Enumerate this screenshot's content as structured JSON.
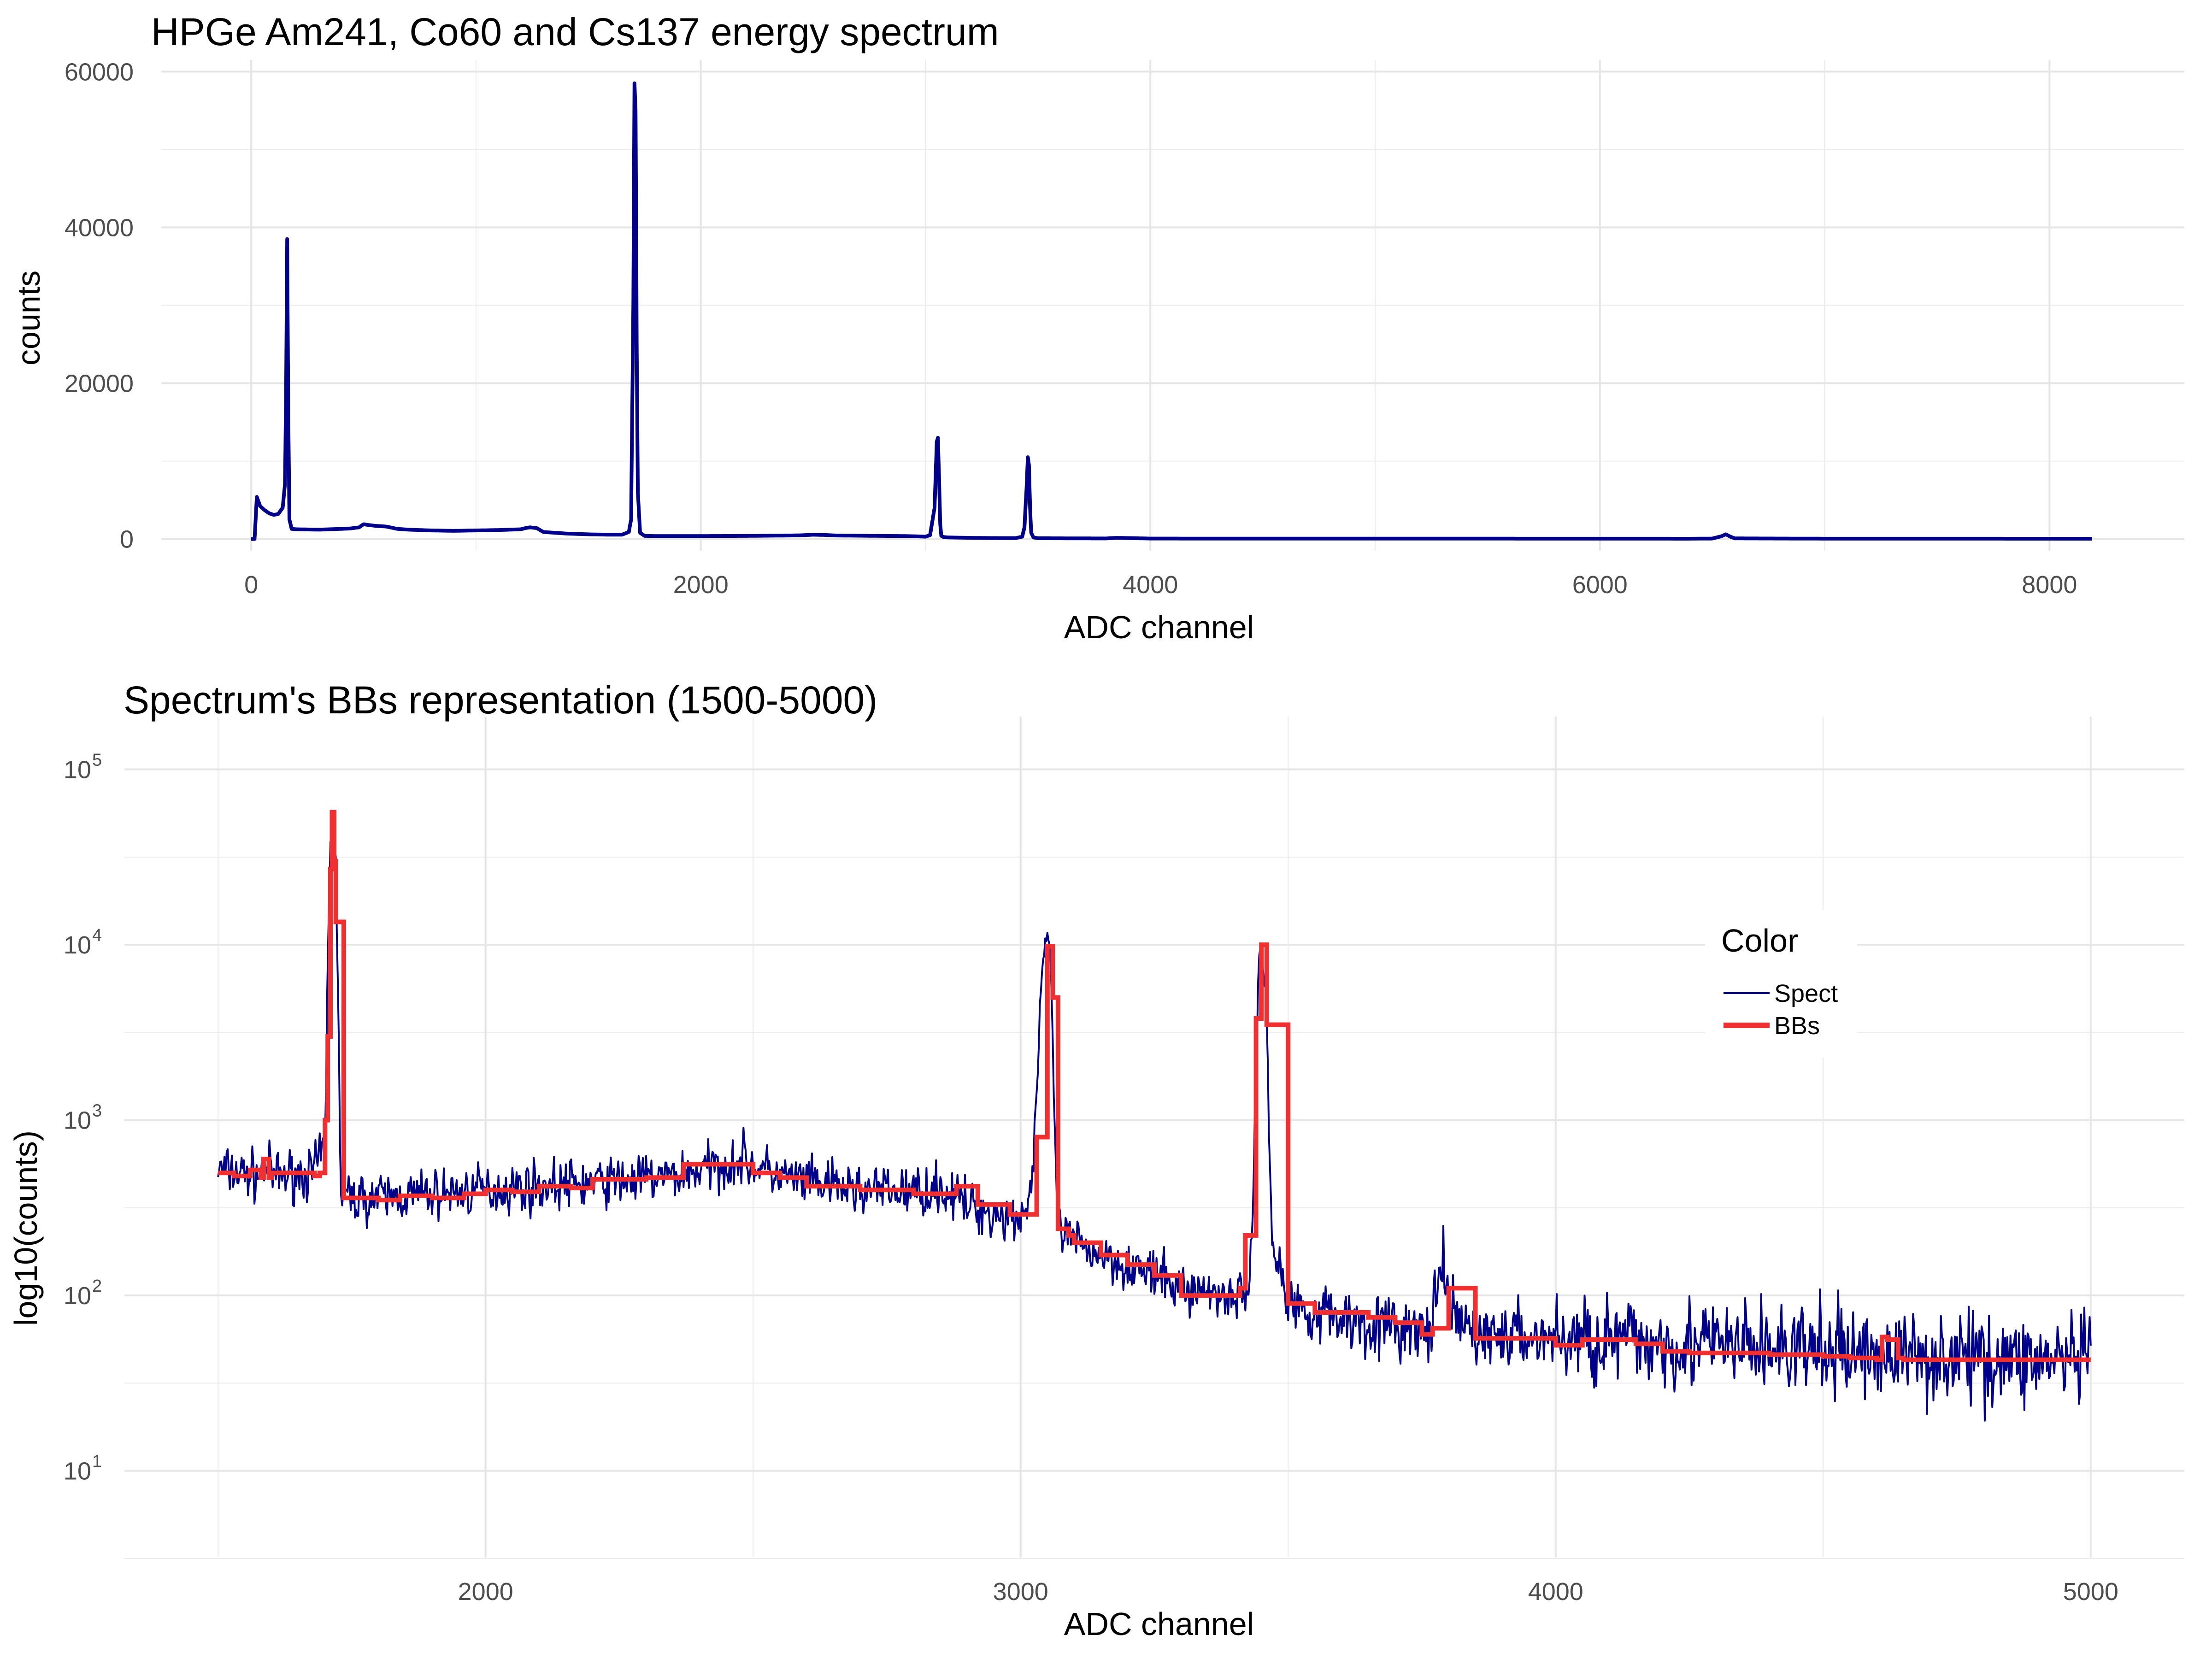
{
  "chart_data": [
    {
      "type": "line",
      "title": "HPGe Am241, Co60 and Cs137 energy spectrum",
      "xlabel": "ADC channel",
      "ylabel": "counts",
      "xlim": [
        -400,
        8600
      ],
      "ylim": [
        -1500,
        61500
      ],
      "x_ticks": [
        0,
        2000,
        4000,
        6000,
        8000
      ],
      "y_ticks": [
        0,
        20000,
        40000,
        60000
      ],
      "grid": true,
      "line_color": "#00008B",
      "series": [
        {
          "x": [
            0,
            15,
            25,
            40,
            60,
            80,
            100,
            120,
            140,
            150,
            155,
            160,
            165,
            170,
            180,
            200,
            300,
            400,
            440,
            480,
            500,
            520,
            550,
            600,
            650,
            700,
            800,
            900,
            1000,
            1100,
            1200,
            1220,
            1240,
            1270,
            1300,
            1350,
            1400,
            1500,
            1600,
            1650,
            1680,
            1690,
            1700,
            1705,
            1710,
            1715,
            1720,
            1730,
            1750,
            1800,
            2000,
            2200,
            2400,
            2450,
            2500,
            2550,
            2600,
            2800,
            2900,
            2950,
            3000,
            3020,
            3040,
            3050,
            3055,
            3060,
            3065,
            3070,
            3080,
            3100,
            3200,
            3300,
            3400,
            3430,
            3440,
            3450,
            3455,
            3460,
            3465,
            3470,
            3480,
            3500,
            3700,
            3800,
            3850,
            4000,
            5000,
            6000,
            6400,
            6500,
            6540,
            6560,
            6580,
            6600,
            7000,
            8000,
            8191
          ],
          "y": [
            0,
            0,
            5400,
            4200,
            3700,
            3300,
            3100,
            3200,
            4000,
            7000,
            18000,
            38500,
            16000,
            2500,
            1300,
            1250,
            1200,
            1300,
            1350,
            1500,
            1900,
            1800,
            1700,
            1600,
            1300,
            1200,
            1100,
            1050,
            1100,
            1150,
            1250,
            1400,
            1500,
            1400,
            900,
            800,
            700,
            600,
            550,
            560,
            900,
            2500,
            30000,
            58500,
            55000,
            25000,
            6000,
            800,
            400,
            380,
            380,
            400,
            450,
            480,
            550,
            520,
            450,
            400,
            380,
            350,
            300,
            500,
            4000,
            12500,
            13000,
            8000,
            2000,
            400,
            250,
            200,
            150,
            120,
            110,
            300,
            1500,
            7000,
            10500,
            9500,
            4000,
            800,
            200,
            100,
            80,
            70,
            150,
            60,
            50,
            45,
            40,
            60,
            350,
            600,
            300,
            80,
            45,
            40,
            40
          ]
        }
      ]
    },
    {
      "type": "line",
      "title": "Spectrum's BBs representation (1500-5000)",
      "xlabel": "ADC channel",
      "ylabel": "log10(counts)",
      "xlim": [
        1325,
        5175
      ],
      "ylim": [
        3.2,
        200000
      ],
      "y_scale": "log",
      "x_ticks": [
        2000,
        3000,
        4000,
        5000
      ],
      "y_ticks": [
        {
          "value": 10,
          "base": "10",
          "exp": "1"
        },
        {
          "value": 100,
          "base": "10",
          "exp": "2"
        },
        {
          "value": 1000,
          "base": "10",
          "exp": "3"
        },
        {
          "value": 10000,
          "base": "10",
          "exp": "4"
        },
        {
          "value": 100000,
          "base": "10",
          "exp": "5"
        }
      ],
      "grid": true,
      "legend": {
        "title": "Color",
        "position": "right",
        "entries": [
          "Spect",
          "BBs"
        ]
      },
      "series": [
        {
          "name": "Spect",
          "color": "#00008B",
          "noisy": true,
          "x": [
            1500,
            1580,
            1590,
            1600,
            1680,
            1700,
            1705,
            1710,
            1715,
            1720,
            1725,
            1730,
            1735,
            1750,
            1800,
            2000,
            2200,
            2350,
            2400,
            2450,
            2480,
            2500,
            2550,
            2600,
            2700,
            2800,
            2850,
            2900,
            2950,
            3000,
            3020,
            3030,
            3040,
            3050,
            3055,
            3060,
            3065,
            3070,
            3080,
            3100,
            3200,
            3300,
            3400,
            3420,
            3430,
            3435,
            3440,
            3445,
            3450,
            3460,
            3470,
            3500,
            3600,
            3700,
            3760,
            3780,
            3790,
            3800,
            3850,
            4000,
            4200,
            4500,
            4800,
            5000
          ],
          "y": [
            520,
            480,
            570,
            480,
            500,
            750,
            8000,
            40000,
            55000,
            30000,
            3000,
            380,
            360,
            360,
            360,
            400,
            440,
            480,
            520,
            560,
            600,
            550,
            480,
            440,
            400,
            390,
            410,
            330,
            290,
            280,
            400,
            1400,
            7000,
            12000,
            9000,
            3000,
            600,
            260,
            220,
            200,
            150,
            110,
            100,
            105,
            150,
            300,
            2000,
            8500,
            9500,
            4000,
            200,
            90,
            75,
            65,
            60,
            100,
            155,
            80,
            60,
            57,
            54,
            48,
            44,
            42
          ]
        },
        {
          "name": "BBs",
          "color": "#F03030",
          "step": true,
          "x": [
            1500,
            1530,
            1560,
            1580,
            1585,
            1595,
            1600,
            1680,
            1690,
            1700,
            1705,
            1710,
            1713,
            1717,
            1720,
            1725,
            1735,
            1740,
            1800,
            1840,
            1900,
            1960,
            2000,
            2050,
            2100,
            2160,
            2200,
            2300,
            2370,
            2500,
            2550,
            2600,
            2700,
            2800,
            2880,
            2920,
            2980,
            3030,
            3050,
            3060,
            3070,
            3090,
            3100,
            3150,
            3200,
            3250,
            3300,
            3400,
            3410,
            3420,
            3440,
            3450,
            3460,
            3500,
            3550,
            3650,
            3700,
            3750,
            3770,
            3800,
            3850,
            3950,
            4000,
            4050,
            4150,
            4200,
            4250,
            4400,
            4500,
            4550,
            4600,
            4610,
            4620,
            4640,
            4650,
            4700,
            4800,
            4900,
            5000
          ],
          "y": [
            500,
            480,
            520,
            470,
            600,
            470,
            500,
            480,
            500,
            1000,
            3000,
            27000,
            57000,
            30000,
            13500,
            13500,
            360,
            360,
            350,
            370,
            360,
            380,
            400,
            390,
            420,
            410,
            460,
            470,
            560,
            500,
            470,
            420,
            400,
            380,
            420,
            330,
            290,
            800,
            9800,
            5000,
            240,
            220,
            200,
            170,
            150,
            130,
            100,
            100,
            110,
            220,
            3800,
            10000,
            3500,
            90,
            80,
            75,
            70,
            60,
            65,
            110,
            57,
            57,
            52,
            56,
            53,
            48,
            47,
            46,
            45,
            44,
            43,
            58,
            56,
            44,
            43,
            43,
            43,
            43,
            43
          ]
        }
      ]
    }
  ]
}
